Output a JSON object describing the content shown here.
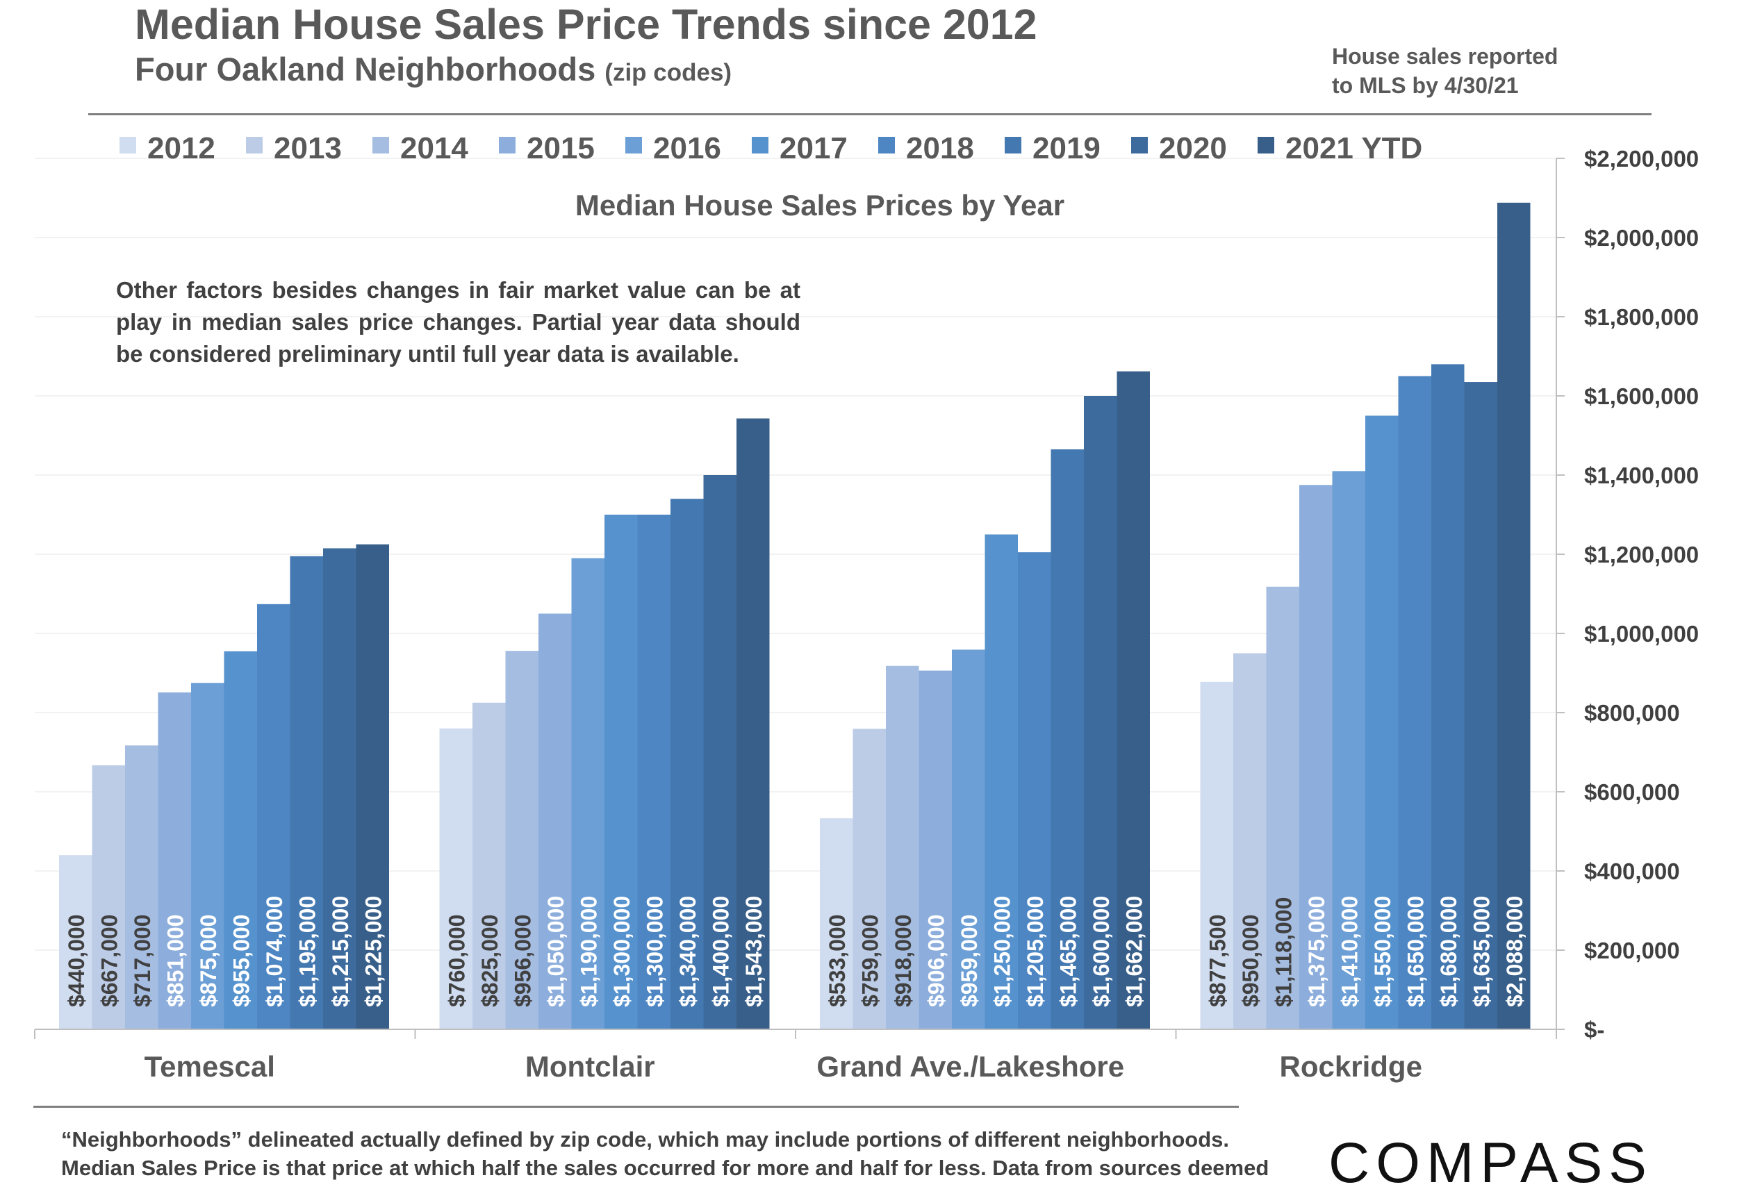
{
  "header": {
    "title": "Median House Sales Price Trends since 2012",
    "subtitle": "Four Oakland Neighborhoods",
    "subtitle_small": "(zip codes)",
    "note_line1": "House sales reported",
    "note_line2": "to MLS by 4/30/21"
  },
  "caveat": "Other factors besides changes in fair market value can be at play in median sales price changes. Partial year data should be considered preliminary until full year data is available.",
  "footer": {
    "line1": "“Neighborhoods” delineated actually defined by zip code, which may include portions of different neighborhoods.",
    "line2": "Median Sales Price is that price at which half the sales occurred for more and half for less. Data from sources deemed"
  },
  "logo": "COMPASS",
  "colors": {
    "series": [
      "#d0dcef",
      "#bccce7",
      "#a6bde2",
      "#8daedc",
      "#6b9fd5",
      "#5592ce",
      "#4d86c3",
      "#4478b0",
      "#3e6b9e",
      "#385f89"
    ],
    "axis": "#bfbfbf",
    "text": "#595959"
  },
  "chart_data": {
    "type": "bar",
    "title": "Median House Sales Prices by Year",
    "categories": [
      "Temescal",
      "Montclair",
      "Grand Ave./Lakeshore",
      "Rockridge"
    ],
    "ylim": [
      0,
      2200000
    ],
    "yticks": [
      0,
      200000,
      400000,
      600000,
      800000,
      1000000,
      1200000,
      1400000,
      1600000,
      1800000,
      2000000,
      2200000
    ],
    "ytick_labels": [
      "$-",
      "$200,000",
      "$400,000",
      "$600,000",
      "$800,000",
      "$1,000,000",
      "$1,200,000",
      "$1,400,000",
      "$1,600,000",
      "$1,800,000",
      "$2,000,000",
      "$2,200,000"
    ],
    "yaxis_position": "right",
    "grid": true,
    "legend": "top",
    "series": [
      {
        "name": "2012",
        "values": [
          440000,
          760000,
          533000,
          877500
        ],
        "labels": [
          "$440,000",
          "$760,000",
          "$533,000",
          "$877,500"
        ]
      },
      {
        "name": "2013",
        "values": [
          667000,
          825000,
          759000,
          950000
        ],
        "labels": [
          "$667,000",
          "$825,000",
          "$759,000",
          "$950,000"
        ]
      },
      {
        "name": "2014",
        "values": [
          717000,
          956000,
          918000,
          1118000
        ],
        "labels": [
          "$717,000",
          "$956,000",
          "$918,000",
          "$1,118,000"
        ]
      },
      {
        "name": "2015",
        "values": [
          851000,
          1050000,
          906000,
          1375000
        ],
        "labels": [
          "$851,000",
          "$1,050,000",
          "$906,000",
          "$1,375,000"
        ]
      },
      {
        "name": "2016",
        "values": [
          875000,
          1190000,
          959000,
          1410000
        ],
        "labels": [
          "$875,000",
          "$1,190,000",
          "$959,000",
          "$1,410,000"
        ]
      },
      {
        "name": "2017",
        "values": [
          955000,
          1300000,
          1250000,
          1550000
        ],
        "labels": [
          "$955,000",
          "$1,300,000",
          "$1,250,000",
          "$1,550,000"
        ]
      },
      {
        "name": "2018",
        "values": [
          1074000,
          1300000,
          1205000,
          1650000
        ],
        "labels": [
          "$1,074,000",
          "$1,300,000",
          "$1,205,000",
          "$1,650,000"
        ]
      },
      {
        "name": "2019",
        "values": [
          1195000,
          1340000,
          1465000,
          1680000
        ],
        "labels": [
          "$1,195,000",
          "$1,340,000",
          "$1,465,000",
          "$1,680,000"
        ]
      },
      {
        "name": "2020",
        "values": [
          1215000,
          1400000,
          1600000,
          1635000
        ],
        "labels": [
          "$1,215,000",
          "$1,400,000",
          "$1,600,000",
          "$1,635,000"
        ]
      },
      {
        "name": "2021 YTD",
        "values": [
          1225000,
          1543000,
          1662000,
          2088000
        ],
        "labels": [
          "$1,225,000",
          "$1,543,000",
          "$1,662,000",
          "$2,088,000"
        ]
      }
    ]
  }
}
